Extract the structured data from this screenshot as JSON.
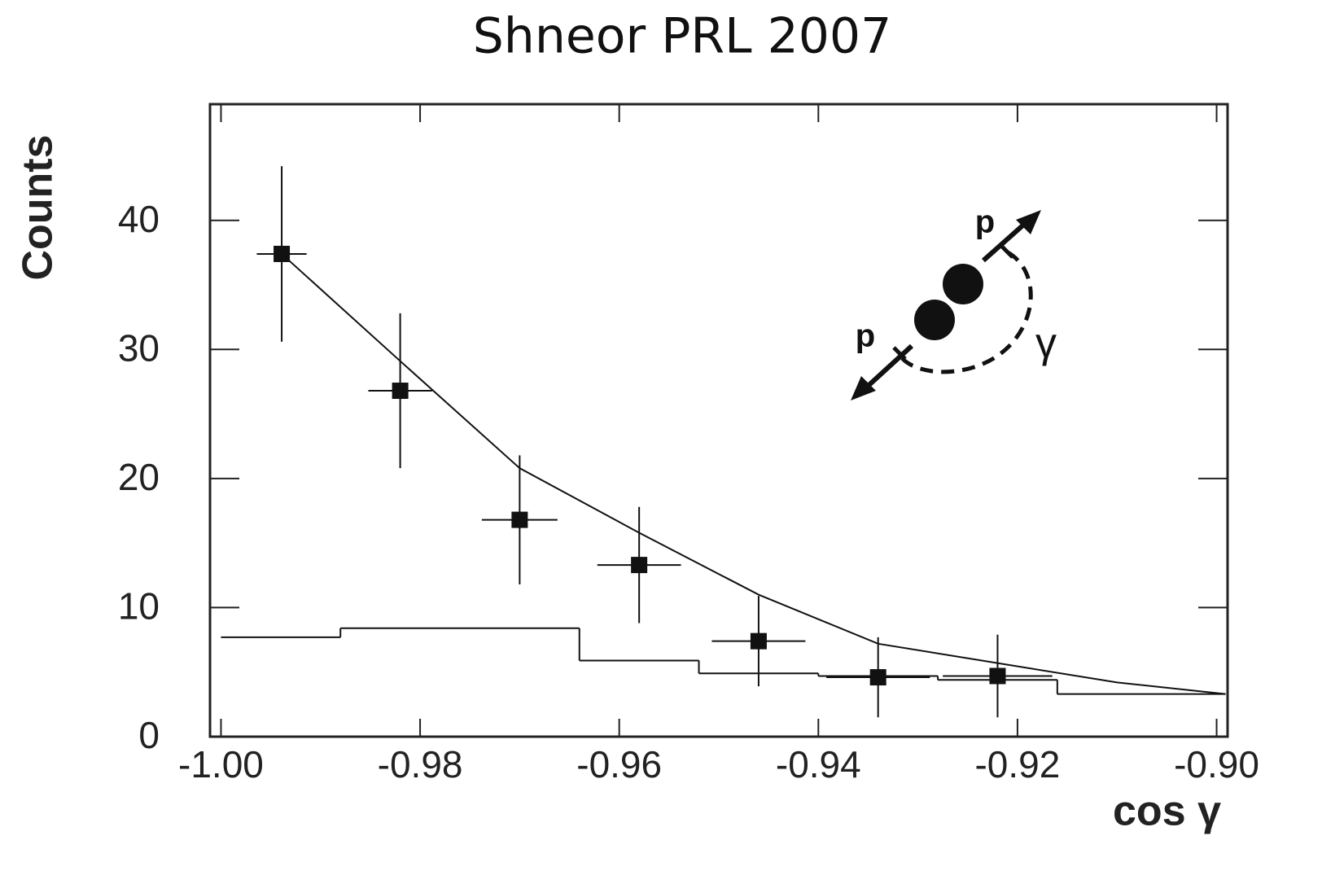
{
  "chart_data": {
    "type": "scatter",
    "title": "Shneor PRL 2007",
    "xlabel": "cos γ",
    "ylabel": "Counts",
    "color": "#111111",
    "xlim": [
      -1.0011,
      -0.8989
    ],
    "ylim": [
      0,
      49
    ],
    "xticks": [
      {
        "value": -1.0,
        "label": "-1.00"
      },
      {
        "value": -0.98,
        "label": "-0.98"
      },
      {
        "value": -0.96,
        "label": "-0.96"
      },
      {
        "value": -0.94,
        "label": "-0.94"
      },
      {
        "value": -0.92,
        "label": "-0.92"
      },
      {
        "value": -0.9,
        "label": "-0.90"
      }
    ],
    "yticks": [
      0,
      10,
      20,
      30,
      40
    ],
    "points": {
      "x": [
        -0.9939,
        -0.982,
        -0.97,
        -0.958,
        -0.946,
        -0.934,
        -0.922
      ],
      "values": [
        37.4,
        26.8,
        16.8,
        13.3,
        7.4,
        4.6,
        4.7
      ],
      "xerr": [
        0.0025,
        0.0032,
        0.0038,
        0.0042,
        0.0047,
        0.0052,
        0.0055
      ],
      "yerr": [
        6.8,
        6.0,
        5.0,
        4.5,
        3.5,
        3.1,
        3.2
      ]
    },
    "curve": {
      "x": [
        -0.9939,
        -0.982,
        -0.97,
        -0.958,
        -0.946,
        -0.934,
        -0.922,
        -0.91,
        -0.8991
      ],
      "values": [
        37.4,
        29.1,
        20.8,
        15.8,
        11.0,
        7.2,
        5.7,
        4.2,
        3.3
      ]
    },
    "histogram": {
      "bins": [
        -1.0,
        -0.988,
        -0.964,
        -0.952,
        -0.94,
        -0.928,
        -0.916,
        -0.8991
      ],
      "counts": [
        7.7,
        8.4,
        5.9,
        4.9,
        4.7,
        4.4,
        3.3
      ]
    },
    "annotations": [
      "p",
      "p",
      "γ"
    ]
  }
}
